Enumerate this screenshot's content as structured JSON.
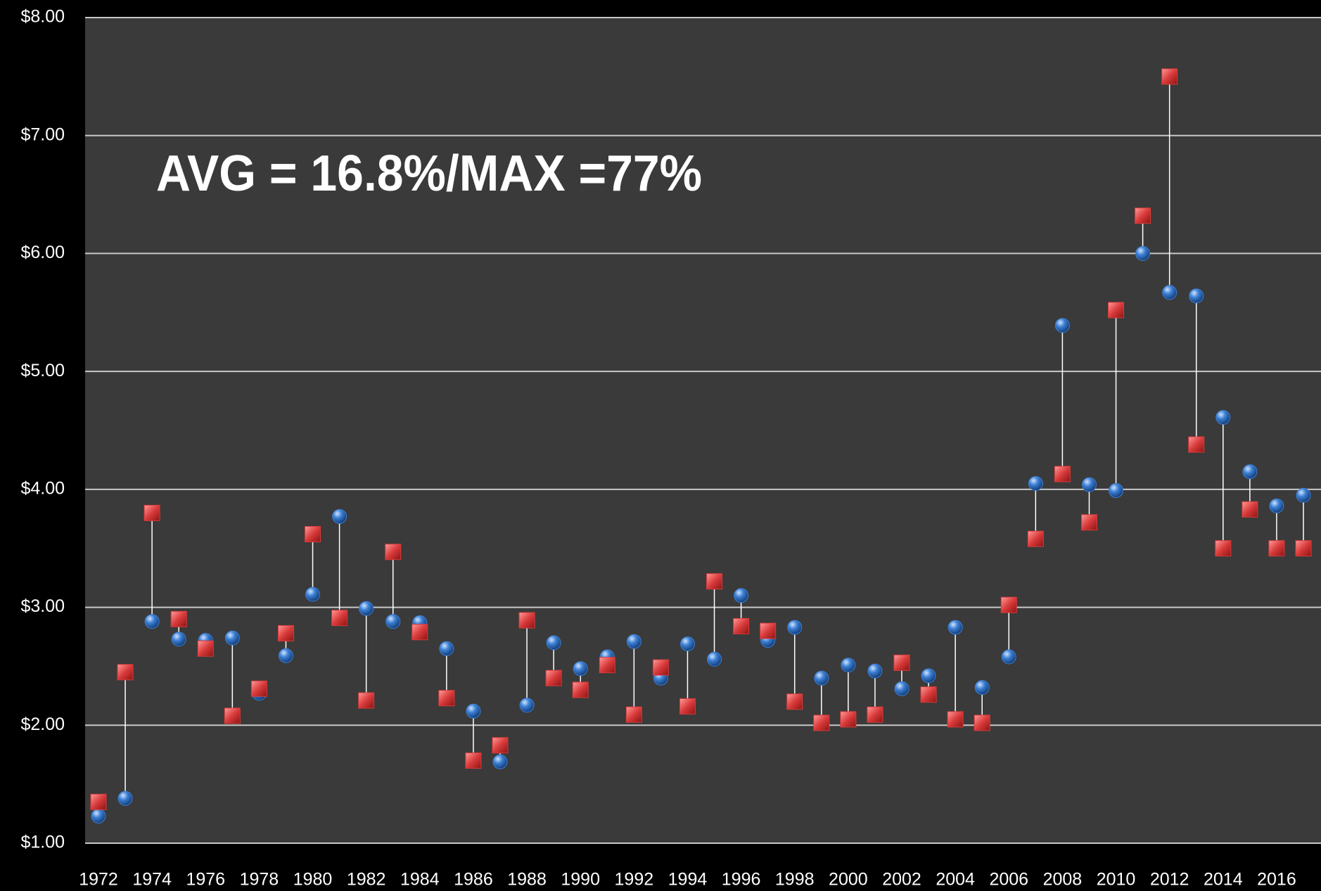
{
  "chart_data": {
    "type": "dumbbell",
    "annotation": "AVG = 16.8%/MAX =77%",
    "categories": [
      "1972",
      null,
      "1974",
      null,
      "1976",
      null,
      "1978",
      null,
      "1980",
      null,
      "1982",
      null,
      "1984",
      null,
      "1986",
      null,
      "1988",
      null,
      "1990",
      null,
      "1992",
      null,
      "1994",
      null,
      "1996",
      null,
      "1998",
      null,
      "2000",
      null,
      "2002",
      null,
      "2004",
      null,
      "2006",
      null,
      "2008",
      null,
      "2010",
      null,
      "2012",
      null,
      "2014",
      null,
      "2016",
      null
    ],
    "series": [
      {
        "color": "#3b7fd4",
        "marker": "circle",
        "values": [
          1.23,
          1.38,
          2.88,
          2.73,
          2.72,
          2.74,
          2.27,
          2.59,
          3.11,
          3.77,
          2.99,
          2.88,
          2.87,
          2.65,
          2.12,
          1.69,
          2.17,
          2.7,
          2.48,
          2.58,
          2.71,
          2.4,
          2.69,
          2.56,
          3.1,
          2.72,
          2.83,
          2.4,
          2.51,
          2.46,
          2.31,
          2.42,
          2.83,
          2.32,
          2.58,
          4.05,
          5.39,
          4.04,
          3.99,
          6.0,
          5.67,
          5.64,
          4.61,
          4.15,
          3.86,
          3.95
        ]
      },
      {
        "color": "#d93a3a",
        "marker": "square",
        "values": [
          1.35,
          2.45,
          3.8,
          2.9,
          2.65,
          2.08,
          2.31,
          2.78,
          3.62,
          2.91,
          2.21,
          3.47,
          2.79,
          2.23,
          1.7,
          1.83,
          2.89,
          2.4,
          2.3,
          2.51,
          2.09,
          2.49,
          2.16,
          3.22,
          2.84,
          2.8,
          2.2,
          2.02,
          2.05,
          2.09,
          2.53,
          2.26,
          2.05,
          2.02,
          3.02,
          3.58,
          4.13,
          3.72,
          5.52,
          6.32,
          7.5,
          4.38,
          3.5,
          3.83,
          3.5,
          3.5
        ]
      }
    ],
    "ylim": [
      1,
      8
    ],
    "yticks": [
      {
        "value": 1,
        "label": "$1.00"
      },
      {
        "value": 2,
        "label": "$2.00"
      },
      {
        "value": 3,
        "label": "$3.00"
      },
      {
        "value": 4,
        "label": "$4.00"
      },
      {
        "value": 5,
        "label": "$5.00"
      },
      {
        "value": 6,
        "label": "$6.00"
      },
      {
        "value": 7,
        "label": "$7.00"
      },
      {
        "value": 8,
        "label": "$8.00"
      }
    ],
    "grid": true
  }
}
